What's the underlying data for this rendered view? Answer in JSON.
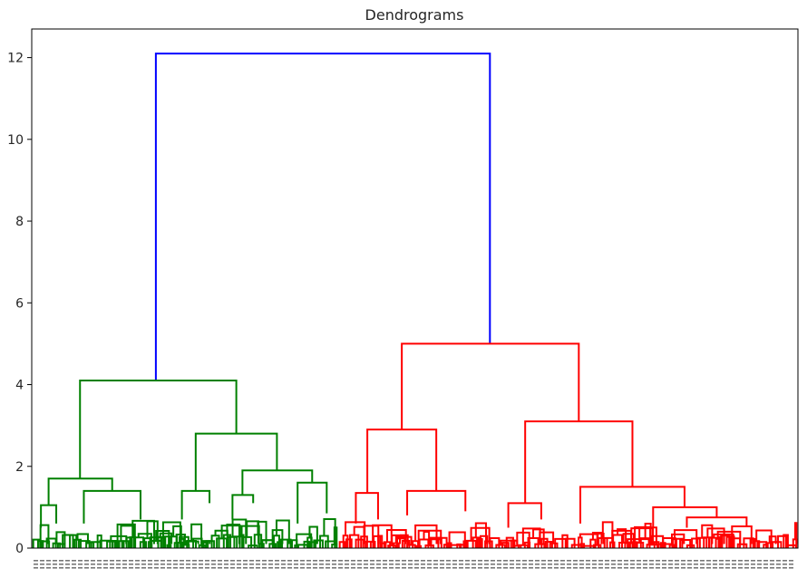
{
  "chart_data": {
    "type": "dendrogram",
    "title": "Dendrograms",
    "ylim": [
      0,
      12.7
    ],
    "yticks": [
      0,
      2,
      4,
      6,
      8,
      10,
      12
    ],
    "xlabel": "",
    "ylabel": "",
    "grid": false,
    "colors": {
      "top": "#0000ff",
      "cluster1": "#008000",
      "cluster2": "#ff0000"
    },
    "links": [
      {
        "left_x": 0.162,
        "right_x": 0.598,
        "height": 12.1,
        "left_child_height": 4.1,
        "right_child_height": 5.0,
        "color": "top"
      },
      {
        "left_x": 0.063,
        "right_x": 0.267,
        "height": 4.1,
        "left_child_height": 1.7,
        "right_child_height": 2.8,
        "color": "cluster1"
      },
      {
        "left_x": 0.022,
        "right_x": 0.105,
        "height": 1.7,
        "left_child_height": 1.05,
        "right_child_height": 1.4,
        "color": "cluster1"
      },
      {
        "left_x": 0.012,
        "right_x": 0.032,
        "height": 1.05,
        "left_child_height": 0.5,
        "right_child_height": 0.6,
        "color": "cluster1"
      },
      {
        "left_x": 0.068,
        "right_x": 0.142,
        "height": 1.4,
        "left_child_height": 0.6,
        "right_child_height": 0.7,
        "color": "cluster1"
      },
      {
        "left_x": 0.214,
        "right_x": 0.32,
        "height": 2.8,
        "left_child_height": 1.4,
        "right_child_height": 1.9,
        "color": "cluster1"
      },
      {
        "left_x": 0.196,
        "right_x": 0.232,
        "height": 1.4,
        "left_child_height": 0.7,
        "right_child_height": 1.1,
        "color": "cluster1"
      },
      {
        "left_x": 0.275,
        "right_x": 0.366,
        "height": 1.9,
        "left_child_height": 1.3,
        "right_child_height": 1.6,
        "color": "cluster1"
      },
      {
        "left_x": 0.262,
        "right_x": 0.289,
        "height": 1.3,
        "left_child_height": 0.7,
        "right_child_height": 1.1,
        "color": "cluster1"
      },
      {
        "left_x": 0.347,
        "right_x": 0.385,
        "height": 1.6,
        "left_child_height": 0.6,
        "right_child_height": 0.85,
        "color": "cluster1"
      },
      {
        "left_x": 0.483,
        "right_x": 0.714,
        "height": 5.0,
        "left_child_height": 2.9,
        "right_child_height": 3.1,
        "color": "cluster2"
      },
      {
        "left_x": 0.438,
        "right_x": 0.528,
        "height": 2.9,
        "left_child_height": 1.35,
        "right_child_height": 1.4,
        "color": "cluster2"
      },
      {
        "left_x": 0.423,
        "right_x": 0.452,
        "height": 1.35,
        "left_child_height": 0.6,
        "right_child_height": 0.7,
        "color": "cluster2"
      },
      {
        "left_x": 0.49,
        "right_x": 0.566,
        "height": 1.4,
        "left_child_height": 0.8,
        "right_child_height": 0.9,
        "color": "cluster2"
      },
      {
        "left_x": 0.644,
        "right_x": 0.784,
        "height": 3.1,
        "left_child_height": 1.1,
        "right_child_height": 1.5,
        "color": "cluster2"
      },
      {
        "left_x": 0.622,
        "right_x": 0.665,
        "height": 1.1,
        "left_child_height": 0.5,
        "right_child_height": 0.7,
        "color": "cluster2"
      },
      {
        "left_x": 0.716,
        "right_x": 0.852,
        "height": 1.5,
        "left_child_height": 0.6,
        "right_child_height": 1.0,
        "color": "cluster2"
      },
      {
        "left_x": 0.811,
        "right_x": 0.894,
        "height": 1.0,
        "left_child_height": 0.5,
        "right_child_height": 0.75,
        "color": "cluster2"
      },
      {
        "left_x": 0.855,
        "right_x": 0.933,
        "height": 0.75,
        "left_child_height": 0.5,
        "right_child_height": 0.55,
        "color": "cluster2"
      }
    ],
    "low_clusters": [
      {
        "x_start": 0.0,
        "x_end": 0.4,
        "color": "cluster1"
      },
      {
        "x_start": 0.4,
        "x_end": 1.0,
        "color": "cluster2"
      }
    ]
  }
}
